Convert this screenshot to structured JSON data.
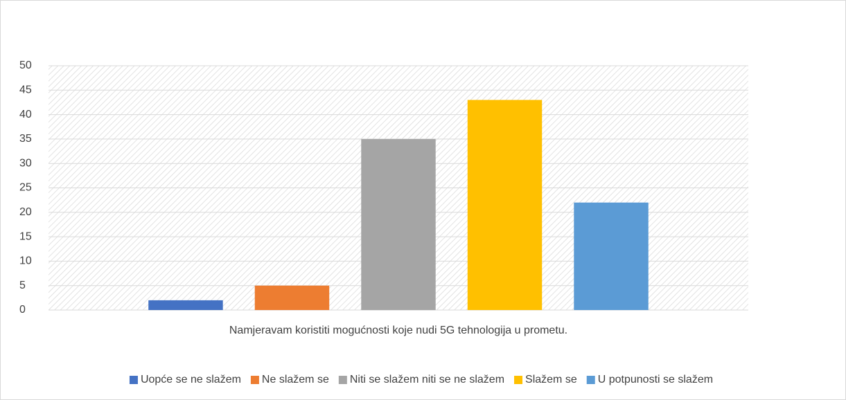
{
  "chart_data": {
    "type": "bar",
    "categories": [
      "Namjeravam koristiti mogućnosti koje nudi 5G tehnologija u prometu."
    ],
    "series": [
      {
        "name": "Uopće se ne slažem",
        "color": "#4472c4",
        "values": [
          2
        ]
      },
      {
        "name": "Ne slažem se",
        "color": "#ed7d31",
        "values": [
          5
        ]
      },
      {
        "name": "Niti se slažem niti se ne slažem",
        "color": "#a5a5a5",
        "values": [
          35
        ]
      },
      {
        "name": "Slažem se",
        "color": "#ffc000",
        "values": [
          43
        ]
      },
      {
        "name": "U potpunosti se slažem",
        "color": "#5b9bd5",
        "values": [
          22
        ]
      }
    ],
    "ylim": [
      0,
      50
    ],
    "yticks": [
      0,
      5,
      10,
      15,
      20,
      25,
      30,
      35,
      40,
      45,
      50
    ],
    "grid": true,
    "legend": "bottom"
  }
}
